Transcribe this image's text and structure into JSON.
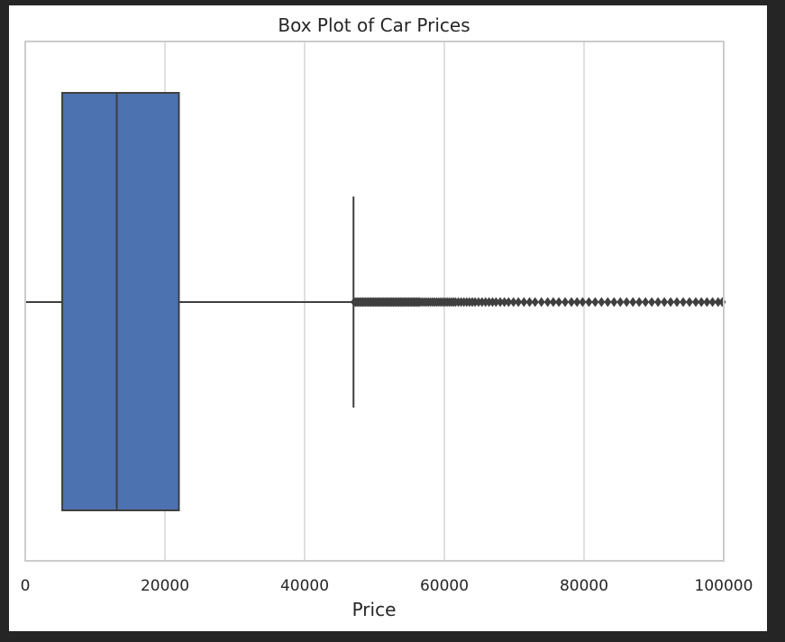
{
  "chart_data": {
    "type": "box",
    "title": "Box Plot of Car Prices",
    "xlabel": "Price",
    "ylabel": "",
    "xlim": [
      0,
      100000
    ],
    "x_ticks": [
      0,
      20000,
      40000,
      60000,
      80000,
      100000
    ],
    "x_tick_labels": [
      "0",
      "20000",
      "40000",
      "60000",
      "80000",
      "100000"
    ],
    "grid": "vertical",
    "box": {
      "whisker_low": 0,
      "q1": 5300,
      "median": 13100,
      "q3": 22000,
      "whisker_high": 47000
    },
    "outliers": [
      47100,
      47300,
      47500,
      47700,
      47900,
      48100,
      48300,
      48500,
      48700,
      48900,
      49100,
      49300,
      49500,
      49700,
      49900,
      50100,
      50300,
      50500,
      50700,
      50900,
      51100,
      51300,
      51500,
      51700,
      51900,
      52100,
      52300,
      52500,
      52700,
      52900,
      53100,
      53300,
      53500,
      53700,
      53900,
      54100,
      54300,
      54500,
      54700,
      54900,
      55100,
      55300,
      55500,
      55700,
      55900,
      56100,
      56300,
      56500,
      56800,
      57100,
      57400,
      57700,
      58000,
      58300,
      58600,
      58900,
      59200,
      59500,
      59800,
      60100,
      60400,
      60700,
      61000,
      61300,
      61600,
      62000,
      62400,
      62800,
      63200,
      63600,
      64000,
      64400,
      64900,
      65400,
      65900,
      66400,
      66900,
      67400,
      68000,
      68600,
      69200,
      69900,
      70600,
      71400,
      72200,
      73000,
      73900,
      74800,
      75600,
      76400,
      77300,
      78200,
      79000,
      79800,
      80700,
      81600,
      82500,
      83400,
      84300,
      85200,
      86100,
      87000,
      87900,
      88800,
      89700,
      90600,
      91500,
      92400,
      93300,
      94200,
      95100,
      96000,
      96800,
      97600,
      98400,
      99200,
      99800
    ]
  },
  "colors": {
    "box_fill": "#4c72b0",
    "line": "#3f3f3f",
    "grid": "#d6d6d6",
    "frame": "#cccccc",
    "outlier": "#3f3f3f"
  }
}
